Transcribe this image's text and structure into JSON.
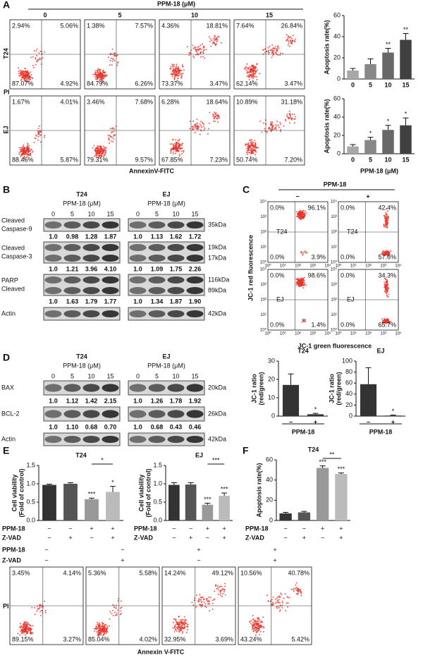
{
  "panel_a": {
    "label": "A",
    "treatment": "PPM-18 (μM)",
    "doses": [
      "0",
      "5",
      "10",
      "15"
    ],
    "rows": [
      {
        "name": "T24",
        "plots": [
          [
            "2.94%",
            "5.06%",
            "87.07%",
            "4.92%"
          ],
          [
            "1.38%",
            "7.57%",
            "84.79%",
            "6.26%"
          ],
          [
            "4.36%",
            "18.81%",
            "73.37%",
            "3.47%"
          ],
          [
            "7.64%",
            "26.84%",
            "62.14%",
            "3.47%"
          ]
        ]
      },
      {
        "name": "EJ",
        "plots": [
          [
            "1.67%",
            "4.01%",
            "88.46%",
            "5.87%"
          ],
          [
            "3.46%",
            "7.68%",
            "79.31%",
            "9.57%"
          ],
          [
            "6.28%",
            "18.64%",
            "67.85%",
            "7.23%"
          ],
          [
            "10.89%",
            "31.18%",
            "50.74%",
            "7.20%"
          ]
        ]
      }
    ],
    "y_axis": "PI",
    "x_axis": "AnnexinV-FITC",
    "xlabel": "PPM-18 (μM)",
    "charts": [
      {
        "type": "bar",
        "ylabel": "Apoptosis rate(%)",
        "categories": [
          "0",
          "5",
          "10",
          "15"
        ],
        "values": [
          8,
          14,
          25,
          37
        ],
        "errors": [
          2,
          5,
          4,
          6
        ],
        "sig": [
          null,
          null,
          "**",
          "**"
        ],
        "ylim": [
          0,
          60
        ],
        "yticks": [
          0,
          20,
          40,
          60
        ],
        "color": [
          "#a8a8a8",
          "#888888",
          "#686868",
          "#404040"
        ]
      },
      {
        "type": "bar",
        "ylabel": "Apoptosis rate(%)",
        "categories": [
          "0",
          "5",
          "10",
          "15"
        ],
        "values": [
          8,
          15,
          26,
          31
        ],
        "errors": [
          2,
          3,
          5,
          8
        ],
        "sig": [
          null,
          "*",
          "*",
          "*"
        ],
        "ylim": [
          0,
          60
        ],
        "yticks": [
          0,
          20,
          40,
          60
        ],
        "color": [
          "#a8a8a8",
          "#888888",
          "#686868",
          "#404040"
        ]
      }
    ]
  },
  "panel_b": {
    "label": "B",
    "blots": [
      {
        "cell": "T24",
        "treatment": "PPM-18 (μM)",
        "lanes": [
          "0",
          "5",
          "10",
          "15"
        ]
      },
      {
        "cell": "EJ",
        "treatment": "PPM-18 (μM)",
        "lanes": [
          "0",
          "5",
          "10",
          "15"
        ]
      }
    ],
    "rows": [
      {
        "name": [
          "Cleaved",
          "Caspase-9"
        ],
        "sizes": [
          "35kDa"
        ],
        "quant": [
          [
            "1.0",
            "0.98",
            "1.28",
            "1.87"
          ],
          [
            "1.0",
            "1.13",
            "1.62",
            "1.72"
          ]
        ]
      },
      {
        "name": [
          "Cleaved",
          "Caspase-3"
        ],
        "sizes": [
          "19kDa",
          "17kDa"
        ],
        "quant": [
          [
            "1.0",
            "1.21",
            "3.96",
            "4.10"
          ],
          [
            "1.0",
            "1.09",
            "1.75",
            "2.26"
          ]
        ]
      },
      {
        "name": [
          "PARP",
          "Cleaved"
        ],
        "sizes": [
          "116kDa",
          "89kDa"
        ],
        "quant": [
          [
            "1.0",
            "1.63",
            "1.79",
            "1.77"
          ],
          [
            "1.0",
            "1.34",
            "1.87",
            "1.90"
          ]
        ]
      },
      {
        "name": [
          "Actin"
        ],
        "sizes": [
          "42kDa"
        ]
      }
    ]
  },
  "panel_c": {
    "label": "C",
    "treatment": "PPM-18",
    "conditions": [
      "−",
      "+"
    ],
    "rows": [
      {
        "name": "T24",
        "plots": [
          [
            "0.0%",
            "96.1%",
            "0.0%",
            "3.9%"
          ],
          [
            "0.0%",
            "42.4%",
            "0.0%",
            "57.6%"
          ]
        ]
      },
      {
        "name": "EJ",
        "plots": [
          [
            "0.0%",
            "98.6%",
            "0.0%",
            "1.4%"
          ],
          [
            "0.0%",
            "34.3%",
            "0.0%",
            "65.7%"
          ]
        ]
      }
    ],
    "log_ticks": [
      "10⁰",
      "10¹",
      "10²",
      "10³",
      "10⁴"
    ],
    "y_axis": "JC-1 red fluorescence",
    "x_axis": "JC-1 green fluorescence"
  },
  "panel_d": {
    "label": "D",
    "blots": [
      {
        "cell": "T24",
        "treatment": "PPM-18 (μM)",
        "lanes": [
          "0",
          "5",
          "10",
          "15"
        ]
      },
      {
        "cell": "EJ",
        "treatment": "PPM-18 (μM)",
        "lanes": [
          "0",
          "5",
          "10",
          "15"
        ]
      }
    ],
    "rows": [
      {
        "name": [
          "BAX"
        ],
        "sizes": [
          "20kDa"
        ],
        "quant": [
          [
            "1.0",
            "1.12",
            "1.42",
            "2.15"
          ],
          [
            "1.0",
            "1.26",
            "1.78",
            "1.92"
          ]
        ]
      },
      {
        "name": [
          "BCL-2"
        ],
        "sizes": [
          "26kDa"
        ],
        "quant": [
          [
            "1.0",
            "1.10",
            "0.68",
            "0.70"
          ],
          [
            "1.0",
            "0.68",
            "0.43",
            "0.46"
          ]
        ]
      },
      {
        "name": [
          "Actin"
        ],
        "sizes": [
          "42kDa"
        ]
      }
    ],
    "charts": [
      {
        "type": "bar",
        "title": "T24",
        "ylabel": [
          "JC-1 ratio",
          "(red/green)"
        ],
        "xlabel": "PPM-18",
        "categories": [
          "−",
          "+"
        ],
        "values": [
          17,
          1
        ],
        "errors": [
          6,
          0.5
        ],
        "sig": [
          null,
          "*"
        ],
        "ylim": [
          0,
          30
        ],
        "yticks": [
          0,
          10,
          20,
          30
        ],
        "color": [
          "#333333",
          "#333333"
        ]
      },
      {
        "type": "bar",
        "title": "EJ",
        "ylabel": [
          "JC-1 ratio",
          "(red/green)"
        ],
        "xlabel": "PPM-18",
        "categories": [
          "−",
          "+"
        ],
        "values": [
          58,
          1
        ],
        "errors": [
          30,
          1
        ],
        "sig": [
          null,
          "*"
        ],
        "ylim": [
          0,
          100
        ],
        "yticks": [
          0,
          20,
          40,
          60,
          80,
          100
        ],
        "color": [
          "#333333",
          "#333333"
        ]
      }
    ]
  },
  "panel_e": {
    "label": "E",
    "treatments": [
      {
        "name": "PPM-18",
        "signs": [
          "−",
          "−",
          "+",
          "+"
        ]
      },
      {
        "name": "Z-VAD",
        "signs": [
          "−",
          "+",
          "−",
          "+"
        ]
      }
    ],
    "charts": [
      {
        "type": "bar",
        "title": "T24",
        "ylabel": [
          "Cell viability",
          "(Fold of control)"
        ],
        "values": [
          0.97,
          1.0,
          0.58,
          0.78
        ],
        "errors": [
          0.02,
          0.03,
          0.03,
          0.15
        ],
        "sig": [
          null,
          null,
          "***",
          "*"
        ],
        "bracket": "*",
        "ylim": [
          0,
          1.5
        ],
        "yticks": [
          {
            "value": 0,
            "label": "0.0"
          },
          {
            "value": 0.5,
            "label": "0.5"
          },
          {
            "value": 1,
            "label": "1.0"
          },
          {
            "value": 1.5,
            "label": "1.5"
          }
        ],
        "color": [
          "#333333",
          "#555555",
          "#999999",
          "#bbbbbb"
        ]
      },
      {
        "type": "bar",
        "title": "EJ",
        "ylabel": [
          "Cell viability",
          "(Fold of control)"
        ],
        "values": [
          0.97,
          0.98,
          0.43,
          0.67
        ],
        "errors": [
          0.06,
          0.05,
          0.04,
          0.08
        ],
        "sig": [
          null,
          null,
          "***",
          "***"
        ],
        "bracket": "***",
        "ylim": [
          0,
          1.5
        ],
        "yticks": [
          {
            "value": 0,
            "label": "0.0"
          },
          {
            "value": 0.5,
            "label": "0.5"
          },
          {
            "value": 1,
            "label": "1.0"
          },
          {
            "value": 1.5,
            "label": "1.5"
          }
        ],
        "color": [
          "#333333",
          "#555555",
          "#999999",
          "#bbbbbb"
        ]
      }
    ]
  },
  "panel_f": {
    "label": "F",
    "treatments": [
      {
        "name": "PPM-18",
        "signs": [
          "−",
          "−",
          "+",
          "+"
        ]
      },
      {
        "name": "Z-VAD",
        "signs": [
          "−",
          "+",
          "−",
          "+"
        ]
      }
    ],
    "charts": [
      {
        "type": "bar",
        "title": "T24",
        "ylabel": "Apoptosis rate(%)",
        "values": [
          7,
          8,
          52,
          46
        ],
        "errors": [
          1,
          1,
          2,
          1
        ],
        "sig": [
          null,
          null,
          "***",
          "***"
        ],
        "bracket": "**",
        "ylim": [
          0,
          60
        ],
        "yticks": [
          0,
          20,
          40,
          60
        ],
        "color": [
          "#333333",
          "#555555",
          "#999999",
          "#bbbbbb"
        ]
      }
    ]
  },
  "panel_bottom": {
    "treatments": [
      {
        "name": "PPM-18",
        "signs": [
          "−",
          "−",
          "+",
          "+"
        ]
      },
      {
        "name": "Z-VAD",
        "signs": [
          "−",
          "+",
          "−",
          "+"
        ]
      }
    ],
    "plots": [
      [
        "3.45%",
        "4.14%",
        "89.15%",
        "3.27%"
      ],
      [
        "5.36%",
        "5.58%",
        "85.04%",
        "4.02%"
      ],
      [
        "14.24%",
        "49.12%",
        "32.95%",
        "3.69%"
      ],
      [
        "10.56%",
        "40.78%",
        "43.24%",
        "5.42%"
      ]
    ],
    "y_axis": "PI",
    "x_axis": "Annexin V-FITC"
  }
}
